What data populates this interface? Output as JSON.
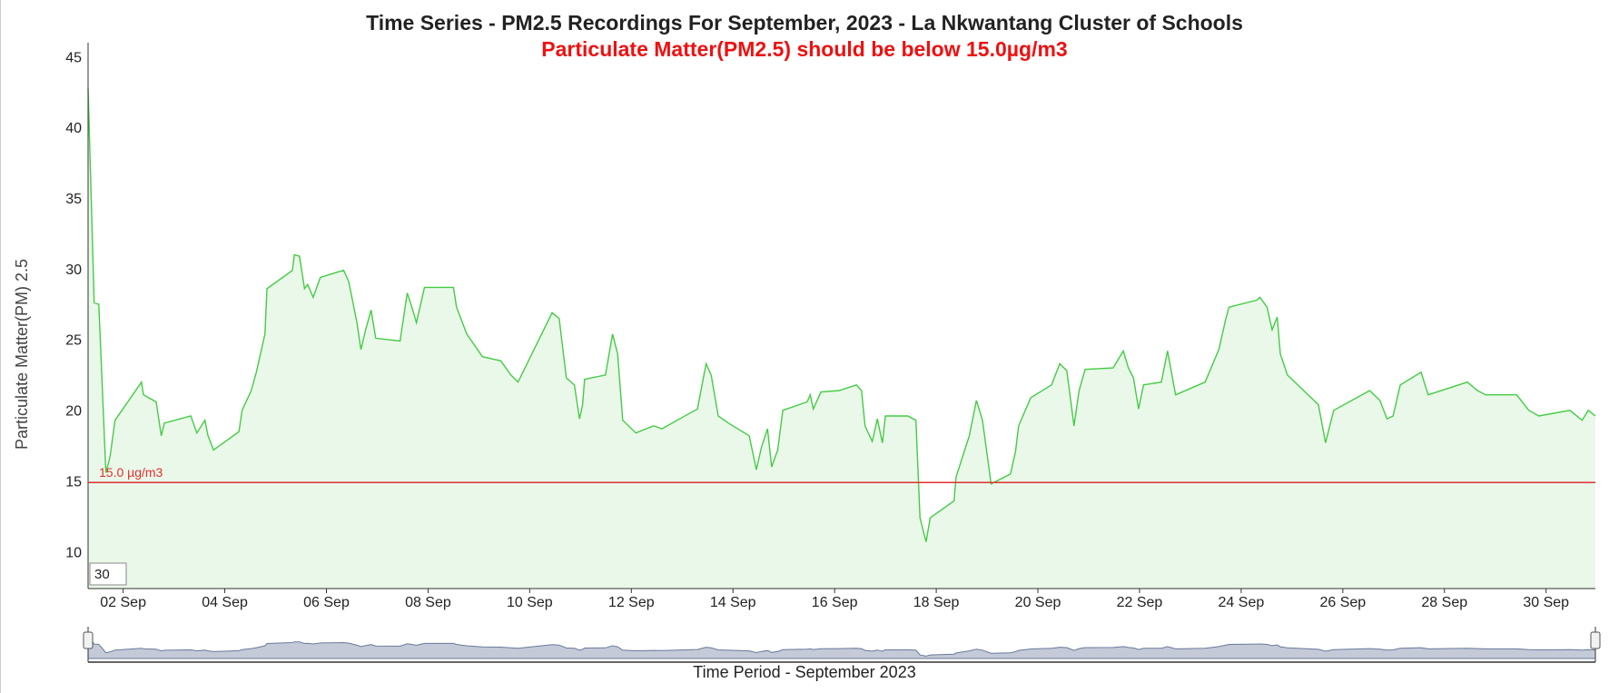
{
  "chart_data": {
    "type": "line",
    "title": "Time Series - PM2.5 Recordings For September, 2023 - La Nkwantang Cluster of Schools",
    "subtitle": "Particulate Matter(PM2.5) should be below 15.0µg/m3",
    "y_label": "Particulate Matter(PM) 2.5",
    "x_label": "Time Period - September 2023",
    "range_input": "30",
    "threshold": 15,
    "threshold_label": "15.0 µg/m3",
    "threshold_color": "#e03030",
    "color": "#44cc44",
    "fill_color": "#eaf8ea",
    "navigator_color": "#c4cad8",
    "xlim": [
      1.31,
      30.97
    ],
    "ylim": [
      7.5,
      46.1
    ],
    "yticks": [
      10,
      15,
      20,
      25,
      30,
      35,
      40,
      45
    ],
    "xticks": [
      {
        "value": 2,
        "label": "02 Sep"
      },
      {
        "value": 4,
        "label": "04 Sep"
      },
      {
        "value": 6,
        "label": "06 Sep"
      },
      {
        "value": 8,
        "label": "08 Sep"
      },
      {
        "value": 10,
        "label": "10 Sep"
      },
      {
        "value": 12,
        "label": "12 Sep"
      },
      {
        "value": 14,
        "label": "14 Sep"
      },
      {
        "value": 16,
        "label": "16 Sep"
      },
      {
        "value": 18,
        "label": "18 Sep"
      },
      {
        "value": 20,
        "label": "20 Sep"
      },
      {
        "value": 22,
        "label": "22 Sep"
      },
      {
        "value": 24,
        "label": "24 Sep"
      },
      {
        "value": 26,
        "label": "26 Sep"
      },
      {
        "value": 28,
        "label": "28 Sep"
      },
      {
        "value": 30,
        "label": "30 Sep"
      }
    ],
    "x": [
      1.31,
      1.43,
      1.52,
      1.66,
      1.74,
      1.84,
      2.36,
      2.4,
      2.65,
      2.75,
      2.81,
      3.33,
      3.45,
      3.61,
      3.67,
      3.78,
      4.28,
      4.34,
      4.52,
      4.62,
      4.79,
      4.83,
      5.33,
      5.37,
      5.47,
      5.57,
      5.63,
      5.74,
      5.88,
      6.24,
      6.34,
      6.44,
      6.6,
      6.68,
      6.78,
      6.88,
      6.97,
      7.45,
      7.59,
      7.69,
      7.77,
      7.93,
      8.5,
      8.56,
      8.76,
      9.07,
      9.43,
      9.63,
      9.77,
      10.44,
      10.58,
      10.72,
      10.88,
      10.98,
      11.04,
      11.08,
      11.49,
      11.63,
      11.73,
      11.83,
      12.09,
      12.44,
      12.6,
      13.3,
      13.47,
      13.57,
      13.71,
      13.91,
      14.32,
      14.46,
      14.56,
      14.68,
      14.76,
      14.88,
      14.98,
      15.46,
      15.52,
      15.58,
      15.73,
      16.09,
      16.43,
      16.53,
      16.6,
      16.74,
      16.84,
      16.94,
      17.0,
      17.44,
      17.6,
      17.68,
      17.8,
      17.88,
      18.35,
      18.39,
      18.49,
      18.65,
      18.79,
      18.91,
      19.08,
      19.46,
      19.56,
      19.62,
      19.86,
      20.27,
      20.43,
      20.57,
      20.71,
      20.81,
      20.93,
      21.48,
      21.68,
      21.78,
      21.88,
      21.98,
      22.08,
      22.43,
      22.55,
      22.71,
      23.29,
      23.56,
      23.7,
      23.76,
      24.31,
      24.37,
      24.51,
      24.61,
      24.71,
      24.77,
      24.91,
      25.52,
      25.66,
      25.82,
      26.53,
      26.73,
      26.87,
      26.99,
      27.13,
      27.54,
      27.68,
      28.45,
      28.65,
      28.81,
      29.42,
      29.66,
      29.86,
      30.47,
      30.71,
      30.83,
      30.97
    ],
    "values": [
      42.9,
      27.7,
      27.6,
      15.7,
      16.8,
      19.4,
      22.1,
      21.2,
      20.7,
      18.3,
      19.2,
      19.7,
      18.5,
      19.4,
      18.3,
      17.3,
      18.6,
      20.1,
      21.5,
      22.8,
      25.5,
      28.7,
      30.0,
      31.1,
      31.0,
      28.7,
      29.0,
      28.1,
      29.5,
      29.9,
      30.0,
      29.2,
      26.3,
      24.4,
      25.9,
      27.2,
      25.2,
      25.0,
      28.4,
      27.3,
      26.3,
      28.8,
      28.8,
      27.4,
      25.5,
      23.9,
      23.6,
      22.6,
      22.1,
      27.0,
      26.6,
      22.4,
      21.9,
      19.5,
      20.5,
      22.3,
      22.6,
      25.5,
      24.1,
      19.4,
      18.5,
      19.0,
      18.8,
      20.2,
      23.4,
      22.6,
      19.7,
      19.2,
      18.3,
      15.9,
      17.5,
      18.8,
      16.1,
      17.3,
      20.1,
      20.7,
      21.2,
      20.2,
      21.4,
      21.5,
      21.9,
      21.5,
      19.0,
      17.9,
      19.5,
      17.8,
      19.7,
      19.7,
      19.4,
      12.5,
      10.8,
      12.5,
      13.7,
      15.4,
      16.5,
      18.3,
      20.8,
      19.4,
      14.9,
      15.6,
      17.2,
      19.0,
      21.0,
      21.9,
      23.4,
      22.9,
      19.0,
      21.5,
      23.0,
      23.1,
      24.3,
      23.1,
      22.4,
      20.2,
      21.9,
      22.1,
      24.3,
      21.2,
      22.1,
      24.4,
      26.6,
      27.4,
      27.9,
      28.1,
      27.4,
      25.8,
      26.7,
      24.1,
      22.6,
      20.5,
      17.8,
      20.1,
      21.5,
      20.8,
      19.5,
      19.7,
      21.9,
      22.8,
      21.2,
      22.1,
      21.5,
      21.2,
      21.2,
      20.1,
      19.7,
      20.1,
      19.4,
      20.1,
      19.7
    ]
  }
}
